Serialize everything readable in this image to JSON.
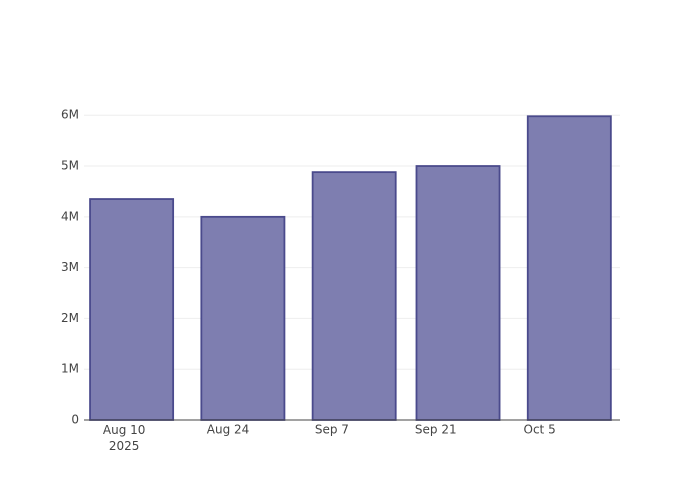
{
  "chart_data": {
    "type": "bar",
    "x": [
      "2025-08-11",
      "2025-08-26",
      "2025-09-10",
      "2025-09-24",
      "2025-10-09"
    ],
    "values": [
      4350000,
      4000000,
      4880000,
      5000000,
      5980000
    ],
    "color": "#7e7eb0",
    "line_color": "#4a4a8c",
    "xlim": [
      "2025-08-04T14:00",
      "2025-10-15T20:00"
    ],
    "xticks": [
      {
        "value": "2025-08-10",
        "label": "Aug 10\n2025"
      },
      {
        "value": "2025-08-24",
        "label": "Aug 24"
      },
      {
        "value": "2025-09-07",
        "label": "Sep 7"
      },
      {
        "value": "2025-09-21",
        "label": "Sep 21"
      },
      {
        "value": "2025-10-05",
        "label": "Oct 5"
      }
    ],
    "ylim": [
      0,
      6300000
    ],
    "yticks": [
      0,
      {
        "value": 1000000,
        "label": "1M"
      },
      {
        "value": 2000000,
        "label": "2M"
      },
      {
        "value": 3000000,
        "label": "3M"
      },
      {
        "value": 4000000,
        "label": "4M"
      },
      {
        "value": 5000000,
        "label": "5M"
      },
      {
        "value": 6000000,
        "label": "6M"
      }
    ],
    "grid": true
  }
}
